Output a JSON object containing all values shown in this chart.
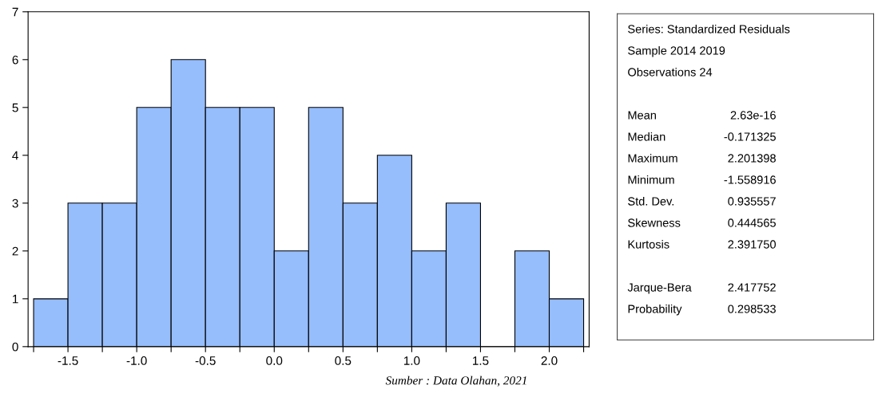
{
  "chart_data": [
    {
      "type": "histogram",
      "bins": [
        -1.75,
        -1.5,
        -1.25,
        -1.0,
        -0.75,
        -0.5,
        -0.25,
        0.0,
        0.25,
        0.5,
        0.75,
        1.0,
        1.25,
        1.5,
        1.75,
        2.0,
        2.25
      ],
      "values": [
        1,
        3,
        3,
        5,
        6,
        5,
        5,
        2,
        5,
        3,
        4,
        2,
        3,
        0,
        2,
        1
      ],
      "color": "#96bdfc",
      "xlim": [
        -1.79,
        2.29
      ],
      "ylim": [
        0,
        7
      ],
      "xticks": [
        {
          "value": -1.75,
          "label": null
        },
        -1.5,
        {
          "value": -1.25,
          "label": null
        },
        {
          "value": -1.0,
          "label": "-1.0"
        },
        {
          "value": -0.75,
          "label": null
        },
        -0.5,
        {
          "value": -0.25,
          "label": null
        },
        {
          "value": 0.0,
          "label": "0.0"
        },
        {
          "value": 0.25,
          "label": null
        },
        0.5,
        {
          "value": 0.75,
          "label": null
        },
        {
          "value": 1.0,
          "label": "1.0"
        },
        {
          "value": 1.25,
          "label": null
        },
        1.5,
        {
          "value": 1.75,
          "label": null
        },
        {
          "value": 2.0,
          "label": "2.0"
        },
        {
          "value": 2.25,
          "label": null
        }
      ],
      "yticks": [
        0,
        1,
        2,
        3,
        4,
        5,
        6,
        7
      ],
      "grid": false,
      "annotations": [
        "Sumber : Data Olahan, 2021"
      ]
    },
    {
      "type": "other",
      "annotations": [
        "Series: Standardized Residuals",
        "Sample 2014 2019",
        "Observations 24"
      ],
      "categories": [
        "Mean",
        "Median",
        "Maximum",
        "Minimum",
        "Std. Dev.",
        "Skewness",
        "Kurtosis",
        null,
        "Jarque-Bera",
        "Probability"
      ],
      "value_labels": [
        "2.63e-16",
        "-0.171325",
        "2.201398",
        "-1.558916",
        "0.935557",
        "0.444565",
        "2.391750",
        null,
        "2.417752",
        "0.298533"
      ]
    }
  ]
}
